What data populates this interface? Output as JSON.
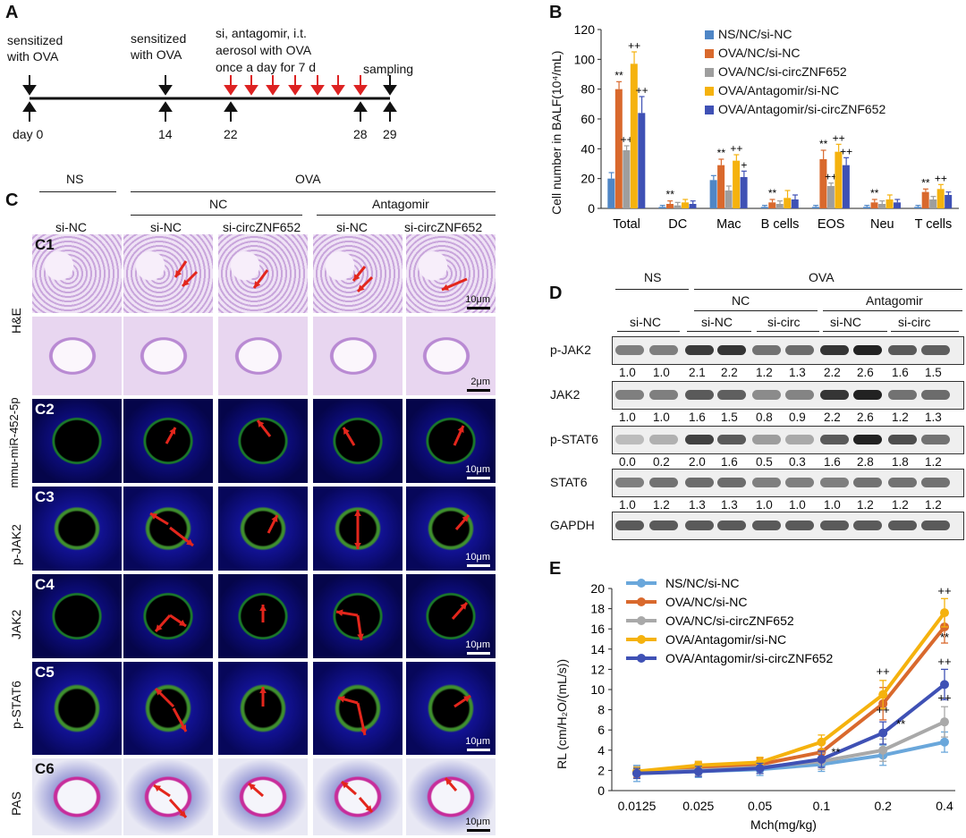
{
  "panels": {
    "a": "A",
    "b": "B",
    "c": "C",
    "d": "D",
    "e": "E"
  },
  "timeline": {
    "sensitized_1": [
      "sensitized",
      "with OVA"
    ],
    "sensitized_2": [
      "sensitized",
      "with OVA"
    ],
    "treatment": [
      "si, antagomir, i.t.",
      "aerosol with OVA",
      "once a day for 7 d"
    ],
    "sampling": "sampling",
    "days": [
      "day 0",
      "14",
      "22",
      "28",
      "29"
    ]
  },
  "panel_c": {
    "groups": {
      "ns": "NS",
      "ova": "OVA",
      "nc": "NC",
      "antagomir": "Antagomir"
    },
    "columns": [
      "si-NC",
      "si-NC",
      "si-circZNF652",
      "si-NC",
      "si-circZNF652"
    ],
    "rows": [
      "H&E",
      "mmu-miR-452-5p",
      "p-JAK2",
      "JAK2",
      "p-STAT6",
      "PAS"
    ],
    "tile_labels": [
      "C1",
      "C2",
      "C3",
      "C4",
      "C5",
      "C6"
    ],
    "scale_10": "10μm",
    "scale_2": "2μm"
  },
  "panel_d": {
    "groups": {
      "ns": "NS",
      "ova": "OVA",
      "nc": "NC",
      "antagomir": "Antagomir"
    },
    "lanes": [
      "si-NC",
      "si-NC",
      "si-circ",
      "si-NC",
      "si-circ"
    ],
    "rows": [
      {
        "name": "p-JAK2",
        "values": [
          "1.0",
          "1.0",
          "2.1",
          "2.2",
          "1.2",
          "1.3",
          "2.2",
          "2.6",
          "1.6",
          "1.5"
        ]
      },
      {
        "name": "JAK2",
        "values": [
          "1.0",
          "1.0",
          "1.6",
          "1.5",
          "0.8",
          "0.9",
          "2.2",
          "2.6",
          "1.2",
          "1.3"
        ]
      },
      {
        "name": "p-STAT6",
        "values": [
          "0.0",
          "0.2",
          "2.0",
          "1.6",
          "0.5",
          "0.3",
          "1.6",
          "2.8",
          "1.8",
          "1.2"
        ]
      },
      {
        "name": "STAT6",
        "values": [
          "1.0",
          "1.2",
          "1.3",
          "1.3",
          "1.0",
          "1.0",
          "1.0",
          "1.2",
          "1.2",
          "1.2"
        ]
      },
      {
        "name": "GAPDH",
        "values": []
      }
    ]
  },
  "chart_data": [
    {
      "type": "bar",
      "ylabel": "Cell number in BALF(10⁴/mL)",
      "ylim": [
        0,
        120
      ],
      "yticks": [
        "0",
        "20",
        "40",
        "60",
        "80",
        "100",
        "120"
      ],
      "categories": [
        "Total",
        "DC",
        "Mac",
        "B cells",
        "EOS",
        "Neu",
        "T cells"
      ],
      "series": [
        {
          "name": "NS/NC/si-NC",
          "color": "#4f86c6",
          "values": [
            20,
            1,
            19,
            1,
            1,
            1,
            1
          ],
          "errors": [
            4,
            1,
            3,
            1,
            1,
            1,
            1
          ]
        },
        {
          "name": "OVA/NC/si-NC",
          "color": "#d9692d",
          "values": [
            80,
            3,
            29,
            4,
            33,
            4,
            11
          ],
          "errors": [
            5,
            2,
            4,
            2,
            6,
            2,
            2
          ]
        },
        {
          "name": "OVA/NC/si-circZNF652",
          "color": "#9e9e9e",
          "values": [
            39,
            2,
            12,
            3,
            15,
            3,
            6
          ],
          "errors": [
            3,
            2,
            3,
            2,
            2,
            2,
            2
          ]
        },
        {
          "name": "OVA/Antagomir/si-NC",
          "color": "#f5b20e",
          "values": [
            97,
            4,
            32,
            7,
            38,
            6,
            13
          ],
          "errors": [
            8,
            2,
            4,
            5,
            5,
            3,
            3
          ]
        },
        {
          "name": "OVA/Antagomir/si-circZNF652",
          "color": "#3f51b5",
          "values": [
            64,
            3,
            21,
            6,
            29,
            4,
            9
          ],
          "errors": [
            11,
            2,
            4,
            3,
            5,
            2,
            2
          ]
        }
      ],
      "annotations": [
        {
          "category": "Total",
          "series": 1,
          "text": "**"
        },
        {
          "category": "Total",
          "series": 2,
          "text": "++"
        },
        {
          "category": "Total",
          "series": 3,
          "text": "++"
        },
        {
          "category": "Total",
          "series": 4,
          "text": "++"
        },
        {
          "category": "DC",
          "series": 1,
          "text": "**"
        },
        {
          "category": "Mac",
          "series": 1,
          "text": "**"
        },
        {
          "category": "Mac",
          "series": 3,
          "text": "++"
        },
        {
          "category": "Mac",
          "series": 4,
          "text": "+"
        },
        {
          "category": "B cells",
          "series": 1,
          "text": "**"
        },
        {
          "category": "EOS",
          "series": 1,
          "text": "**"
        },
        {
          "category": "EOS",
          "series": 2,
          "text": "++"
        },
        {
          "category": "EOS",
          "series": 3,
          "text": "++"
        },
        {
          "category": "EOS",
          "series": 4,
          "text": "++"
        },
        {
          "category": "Neu",
          "series": 1,
          "text": "**"
        },
        {
          "category": "T cells",
          "series": 1,
          "text": "**"
        },
        {
          "category": "T cells",
          "series": 3,
          "text": "++"
        }
      ]
    },
    {
      "type": "line",
      "ylabel": "RL (cm/H₂O/(mL/s))",
      "xlabel": "Mch(mg/kg)",
      "ylim": [
        0,
        20
      ],
      "yticks": [
        "0",
        "2",
        "4",
        "6",
        "8",
        "10",
        "12",
        "14",
        "16",
        "18",
        "20"
      ],
      "x": [
        "0.0125",
        "0.025",
        "0.05",
        "0.1",
        "0.2",
        "0.4"
      ],
      "series": [
        {
          "name": "NS/NC/si-NC",
          "color": "#6aa7db",
          "values": [
            1.7,
            1.9,
            2.1,
            2.6,
            3.5,
            4.8
          ],
          "errors": [
            0.8,
            0.6,
            0.6,
            0.7,
            1.0,
            1.0
          ]
        },
        {
          "name": "OVA/NC/si-NC",
          "color": "#d9692d",
          "values": [
            1.8,
            2.3,
            2.6,
            3.8,
            8.6,
            16.2
          ],
          "errors": [
            0.5,
            0.5,
            0.6,
            0.9,
            1.6,
            1.6
          ]
        },
        {
          "name": "OVA/NC/si-circZNF652",
          "color": "#a9a9a9",
          "values": [
            1.8,
            2.0,
            2.3,
            2.9,
            4.0,
            6.8
          ],
          "errors": [
            0.6,
            0.5,
            0.6,
            0.8,
            1.1,
            1.5
          ]
        },
        {
          "name": "OVA/Antagomir/si-NC",
          "color": "#f5b20e",
          "values": [
            1.9,
            2.5,
            2.8,
            4.8,
            9.5,
            17.6
          ],
          "errors": [
            0.4,
            0.4,
            0.5,
            0.7,
            1.4,
            1.4
          ]
        },
        {
          "name": "OVA/Antagomir/si-circZNF652",
          "color": "#3f51b5",
          "values": [
            1.7,
            1.9,
            2.2,
            3.1,
            5.7,
            10.5
          ],
          "errors": [
            0.5,
            0.5,
            0.5,
            0.8,
            1.1,
            1.5
          ]
        }
      ],
      "annotations": [
        {
          "x": "0.1",
          "text": "**"
        },
        {
          "x": "0.2",
          "text": "++"
        },
        {
          "x": "0.2",
          "text": "++"
        },
        {
          "x": "0.2",
          "text": "**"
        },
        {
          "x": "0.4",
          "text": "++"
        },
        {
          "x": "0.4",
          "text": "**"
        },
        {
          "x": "0.4",
          "text": "++"
        },
        {
          "x": "0.4",
          "text": "++"
        }
      ]
    }
  ]
}
